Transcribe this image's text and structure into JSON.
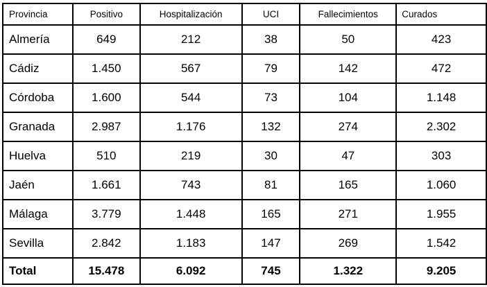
{
  "table": {
    "columns": [
      "Provincia",
      "Positivo",
      "Hospitalización",
      "UCI",
      "Fallecimientos",
      "Curados"
    ],
    "rows": [
      {
        "cells": [
          "Almería",
          "649",
          "212",
          "38",
          "50",
          "423"
        ],
        "is_total": false
      },
      {
        "cells": [
          "Cádiz",
          "1.450",
          "567",
          "79",
          "142",
          "472"
        ],
        "is_total": false
      },
      {
        "cells": [
          "Córdoba",
          "1.600",
          "544",
          "73",
          "104",
          "1.148"
        ],
        "is_total": false
      },
      {
        "cells": [
          "Granada",
          "2.987",
          "1.176",
          "132",
          "274",
          "2.302"
        ],
        "is_total": false
      },
      {
        "cells": [
          "Huelva",
          "510",
          "219",
          "30",
          "47",
          "303"
        ],
        "is_total": false
      },
      {
        "cells": [
          "Jaén",
          "1.661",
          "743",
          "81",
          "165",
          "1.060"
        ],
        "is_total": false
      },
      {
        "cells": [
          "Málaga",
          "3.779",
          "1.448",
          "165",
          "271",
          "1.955"
        ],
        "is_total": false
      },
      {
        "cells": [
          "Sevilla",
          "2.842",
          "1.183",
          "147",
          "269",
          "1.542"
        ],
        "is_total": false
      },
      {
        "cells": [
          "Total",
          "15.478",
          "6.092",
          "745",
          "1.322",
          "9.205"
        ],
        "is_total": true
      }
    ]
  },
  "colors": {
    "border": "#000000",
    "text": "#000000",
    "background": "#ffffff"
  },
  "chart_data": {
    "type": "table",
    "title": "",
    "categories": [
      "Almería",
      "Cádiz",
      "Córdoba",
      "Granada",
      "Huelva",
      "Jaén",
      "Málaga",
      "Sevilla",
      "Total"
    ],
    "series": [
      {
        "name": "Positivo",
        "values": [
          649,
          1450,
          1600,
          2987,
          510,
          1661,
          3779,
          2842,
          15478
        ]
      },
      {
        "name": "Hospitalización",
        "values": [
          212,
          567,
          544,
          1176,
          219,
          743,
          1448,
          1183,
          6092
        ]
      },
      {
        "name": "UCI",
        "values": [
          38,
          79,
          73,
          132,
          30,
          81,
          165,
          147,
          745
        ]
      },
      {
        "name": "Fallecimientos",
        "values": [
          50,
          142,
          104,
          274,
          47,
          165,
          271,
          269,
          1322
        ]
      },
      {
        "name": "Curados",
        "values": [
          423,
          472,
          1148,
          2302,
          303,
          1060,
          1955,
          1542,
          9205
        ]
      }
    ]
  }
}
